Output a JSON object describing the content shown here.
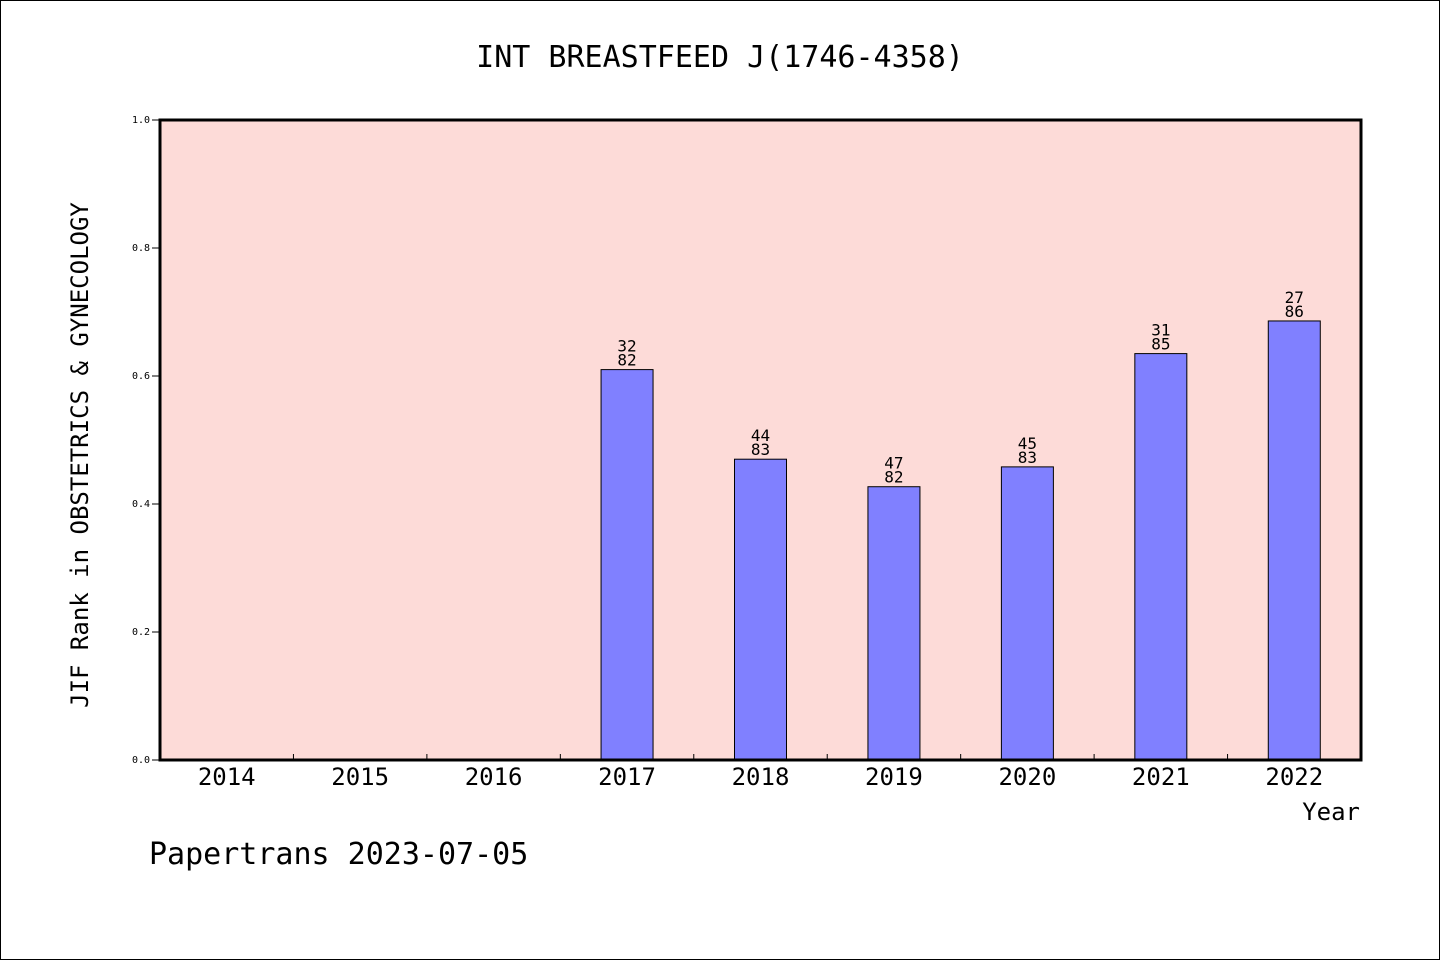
{
  "chart_data": {
    "type": "bar",
    "title": "INT BREASTFEED J(1746-4358)",
    "xlabel": "Year",
    "ylabel": "JIF Rank in OBSTETRICS & GYNECOLOGY",
    "ylim": [
      0,
      1.0
    ],
    "yticks": [
      "0.0",
      "0.2",
      "0.4",
      "0.6",
      "0.8",
      "1.0"
    ],
    "categories": [
      "2014",
      "2015",
      "2016",
      "2017",
      "2018",
      "2019",
      "2020",
      "2021",
      "2022"
    ],
    "values": [
      null,
      null,
      null,
      0.61,
      0.47,
      0.427,
      0.458,
      0.635,
      0.686
    ],
    "labels": [
      null,
      null,
      null,
      [
        "32",
        "82"
      ],
      [
        "44",
        "83"
      ],
      [
        "47",
        "82"
      ],
      [
        "45",
        "83"
      ],
      [
        "31",
        "85"
      ],
      [
        "27",
        "86"
      ]
    ],
    "bar_color": "#8080ff",
    "plot_background": "#fddbd8",
    "grid": false,
    "legend": "none"
  },
  "footer": "Papertrans 2023-07-05"
}
